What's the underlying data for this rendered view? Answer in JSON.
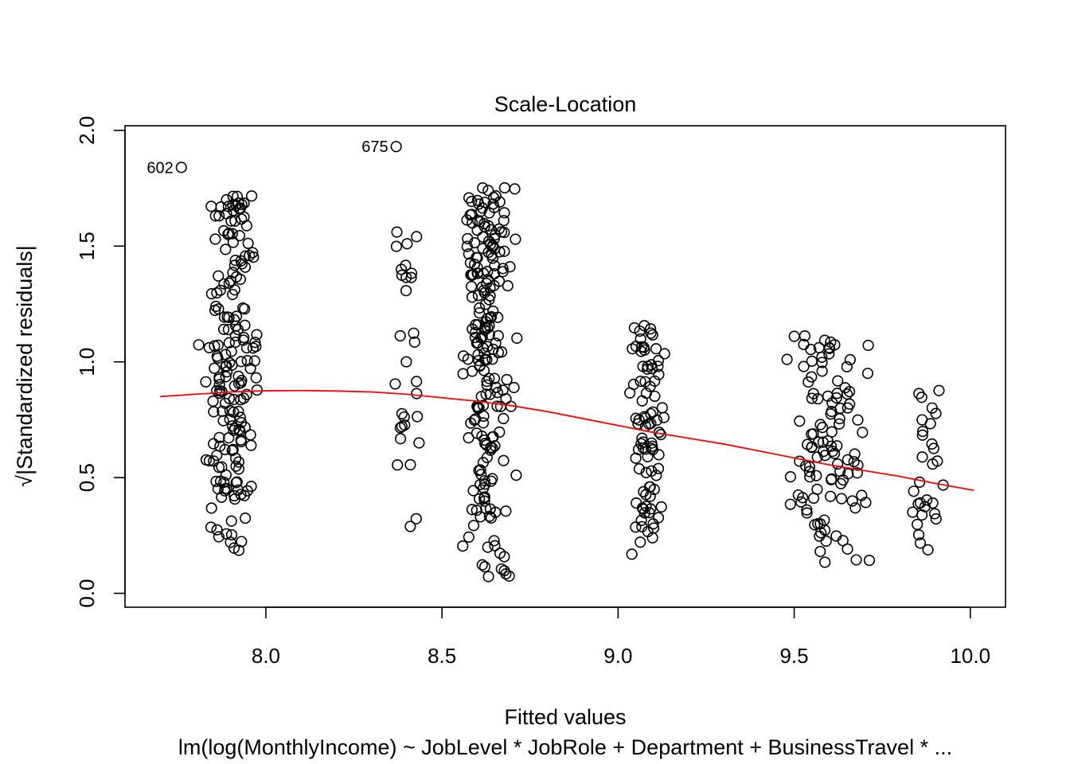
{
  "chart_data": {
    "type": "scatter",
    "title": "Scale-Location",
    "xlabel": "Fitted values",
    "ylabel": "√|Standardized residuals|",
    "subtitle": "lm(log(MonthlyIncome) ~ JobLevel * JobRole + Department + BusinessTravel *  ...",
    "xlim": [
      7.6,
      10.1
    ],
    "ylim": [
      -0.06,
      2.02
    ],
    "x_ticks": [
      "8.0",
      "8.5",
      "9.0",
      "9.5",
      "10.0"
    ],
    "x_tick_values": [
      8.0,
      8.5,
      9.0,
      9.5,
      10.0
    ],
    "y_ticks": [
      "0.0",
      "0.5",
      "1.0",
      "1.5",
      "2.0"
    ],
    "y_tick_values": [
      0.0,
      0.5,
      1.0,
      1.5,
      2.0
    ],
    "grid": false,
    "legend": "none",
    "point_color": "#000000",
    "smoother_color": "#ff0000",
    "labeled_points": [
      {
        "label": "602",
        "x": 7.76,
        "y": 1.84
      },
      {
        "label": "675",
        "x": 8.37,
        "y": 1.93
      }
    ],
    "smoother": {
      "x": [
        7.7,
        7.8,
        7.9,
        8.0,
        8.1,
        8.2,
        8.3,
        8.4,
        8.5,
        8.6,
        8.7,
        8.8,
        8.9,
        9.0,
        9.1,
        9.2,
        9.3,
        9.4,
        9.5,
        9.6,
        9.7,
        9.8,
        9.9,
        10.01
      ],
      "y": [
        0.85,
        0.86,
        0.87,
        0.875,
        0.876,
        0.874,
        0.87,
        0.86,
        0.845,
        0.83,
        0.81,
        0.785,
        0.755,
        0.725,
        0.695,
        0.67,
        0.645,
        0.615,
        0.585,
        0.555,
        0.53,
        0.505,
        0.475,
        0.445
      ]
    },
    "clusters": [
      {
        "x_center": 7.9,
        "x_spread": 0.09,
        "y_min": 0.17,
        "y_max": 1.72,
        "count": 185
      },
      {
        "x_center": 8.4,
        "x_spread": 0.05,
        "y_min": 0.24,
        "y_max": 1.6,
        "count": 30
      },
      {
        "x_center": 8.63,
        "x_spread": 0.08,
        "y_min": 0.07,
        "y_max": 1.78,
        "count": 210
      },
      {
        "x_center": 9.08,
        "x_spread": 0.06,
        "y_min": 0.1,
        "y_max": 1.16,
        "count": 90
      },
      {
        "x_center": 9.6,
        "x_spread": 0.14,
        "y_min": 0.07,
        "y_max": 1.12,
        "count": 110
      },
      {
        "x_center": 9.87,
        "x_spread": 0.06,
        "y_min": 0.11,
        "y_max": 0.88,
        "count": 30
      }
    ]
  }
}
